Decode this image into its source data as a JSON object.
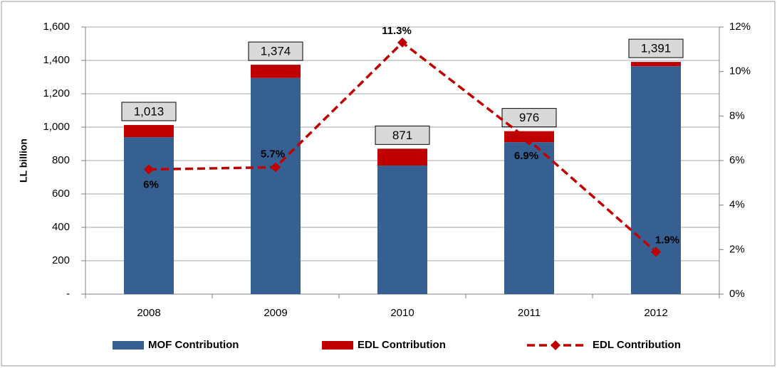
{
  "chart_data": {
    "type": "bar",
    "y_axis_label": "LL billion",
    "categories": [
      "2008",
      "2009",
      "2010",
      "2011",
      "2012"
    ],
    "series": [
      {
        "name": "MOF Contribution",
        "color": "#376092",
        "values": [
          940,
          1295,
          770,
          910,
          1365
        ]
      },
      {
        "name": "EDL Contribution",
        "color": "#c00000",
        "values": [
          73,
          79,
          101,
          66,
          26
        ]
      },
      {
        "name": "EDL Contribution",
        "color": "#c00000",
        "type": "line",
        "axis": "y2",
        "values": [
          5.6,
          5.7,
          11.3,
          6.9,
          1.9
        ],
        "value_labels": [
          "6%",
          "5.7%",
          "11.3%",
          "6.9%",
          "1.9%"
        ]
      }
    ],
    "totals": [
      1013,
      1374,
      871,
      976,
      1391
    ],
    "total_labels": [
      "1,013",
      "1,374",
      "871",
      "976",
      "1,391"
    ],
    "ylim": [
      0,
      1600
    ],
    "yticks": [
      {
        "value": 0,
        "label": "-"
      },
      200,
      400,
      600,
      800,
      {
        "value": 1000,
        "label": "1,000"
      },
      {
        "value": 1200,
        "label": "1,200"
      },
      {
        "value": 1400,
        "label": "1,400"
      },
      {
        "value": 1600,
        "label": "1,600"
      }
    ],
    "y2lim": [
      0,
      12
    ],
    "y2ticks": [
      {
        "value": 0,
        "label": "0%"
      },
      {
        "value": 2,
        "label": "2%"
      },
      {
        "value": 4,
        "label": "4%"
      },
      {
        "value": 6,
        "label": "6%"
      },
      {
        "value": 8,
        "label": "8%"
      },
      {
        "value": 10,
        "label": "10%"
      },
      {
        "value": 12,
        "label": "12%"
      }
    ],
    "grid": true,
    "legend": "bottom"
  }
}
